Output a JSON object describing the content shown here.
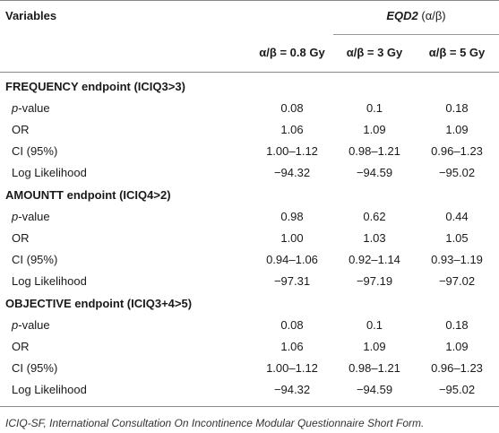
{
  "header": {
    "variables_label": "Variables",
    "group_title": "EQD2",
    "group_suffix": "(α/β)",
    "columns": [
      "α/β = 0.8 Gy",
      "α/β = 3 Gy",
      "α/β = 5 Gy"
    ]
  },
  "sections": [
    {
      "title": "FREQUENCY endpoint (ICIQ3>3)",
      "rows": [
        {
          "label_prefix": "p",
          "label": "-value",
          "values": [
            "0.08",
            "0.1",
            "0.18"
          ]
        },
        {
          "label_prefix": "",
          "label": "OR",
          "values": [
            "1.06",
            "1.09",
            "1.09"
          ]
        },
        {
          "label_prefix": "",
          "label": "CI (95%)",
          "values": [
            "1.00–1.12",
            "0.98–1.21",
            "0.96–1.23"
          ]
        },
        {
          "label_prefix": "",
          "label": "Log Likelihood",
          "values": [
            "−94.32",
            "−94.59",
            "−95.02"
          ]
        }
      ]
    },
    {
      "title": "AMOUNTT endpoint (ICIQ4>2)",
      "rows": [
        {
          "label_prefix": "p",
          "label": "-value",
          "values": [
            "0.98",
            "0.62",
            "0.44"
          ]
        },
        {
          "label_prefix": "",
          "label": "OR",
          "values": [
            "1.00",
            "1.03",
            "1.05"
          ]
        },
        {
          "label_prefix": "",
          "label": "CI (95%)",
          "values": [
            "0.94–1.06",
            "0.92–1.14",
            "0.93–1.19"
          ]
        },
        {
          "label_prefix": "",
          "label": "Log Likelihood",
          "values": [
            "−97.31",
            "−97.19",
            "−97.02"
          ]
        }
      ]
    },
    {
      "title": "OBJECTIVE endpoint (ICIQ3+4>5)",
      "rows": [
        {
          "label_prefix": "p",
          "label": "-value",
          "values": [
            "0.08",
            "0.1",
            "0.18"
          ]
        },
        {
          "label_prefix": "",
          "label": "OR",
          "values": [
            "1.06",
            "1.09",
            "1.09"
          ]
        },
        {
          "label_prefix": "",
          "label": "CI (95%)",
          "values": [
            "1.00–1.12",
            "0.98–1.21",
            "0.96–1.23"
          ]
        },
        {
          "label_prefix": "",
          "label": "Log Likelihood",
          "values": [
            "−94.32",
            "−94.59",
            "−95.02"
          ]
        }
      ]
    }
  ],
  "footnote": "ICIQ-SF, International Consultation On Incontinence Modular Questionnaire Short Form."
}
